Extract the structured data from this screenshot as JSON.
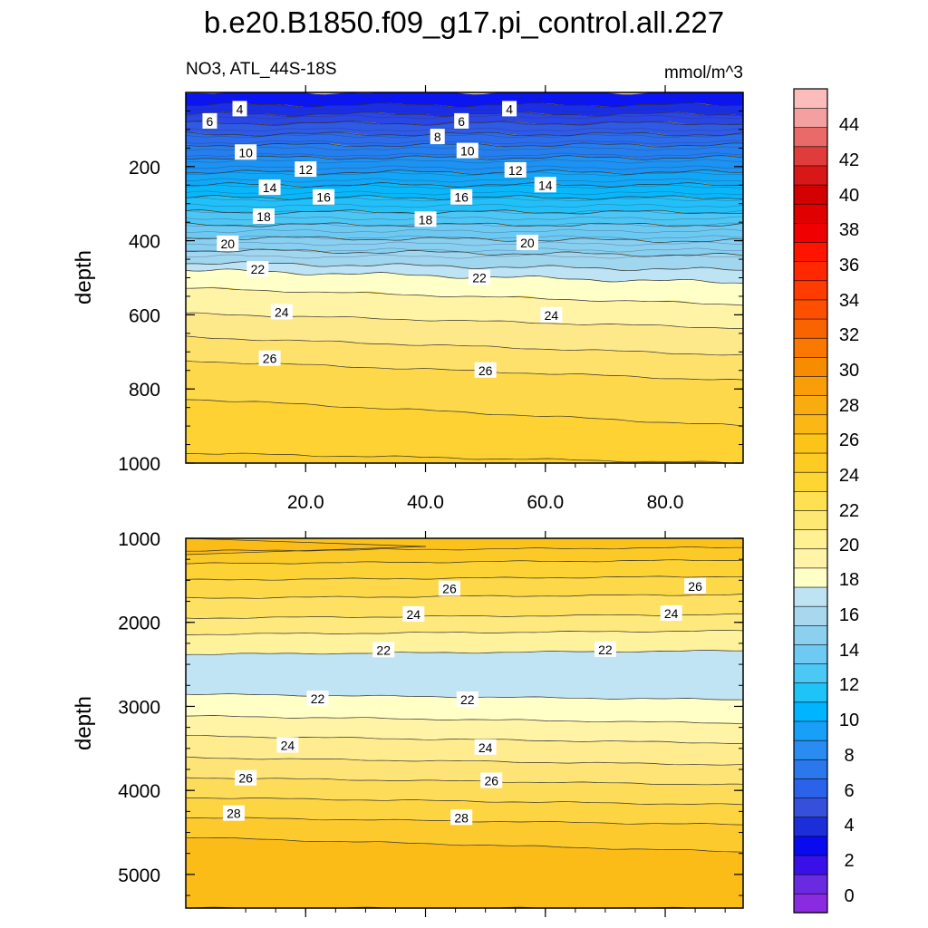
{
  "chart_data": {
    "type": "contour",
    "title": "b.e20.B1850.f09_g17.pi_control.all.227",
    "subtitle_left": "NO3, ATL_44S-18S",
    "units": "mmol/m^3",
    "ylabel": "depth",
    "x_tick_labels": [
      "20.0",
      "40.0",
      "60.0",
      "80.0"
    ],
    "x_ticks": [
      20,
      40,
      60,
      80
    ],
    "xlim": [
      0,
      93
    ],
    "panels": [
      {
        "name": "upper",
        "ylim": [
          0,
          1000
        ],
        "y_ticks": [
          200,
          400,
          600,
          800,
          1000
        ],
        "y_tick_labels": [
          "200",
          "400",
          "600",
          "800",
          "1000"
        ],
        "contour_labels": [
          {
            "text": "4",
            "x": 9,
            "y": 45
          },
          {
            "text": "6",
            "x": 4,
            "y": 78
          },
          {
            "text": "10",
            "x": 10,
            "y": 162
          },
          {
            "text": "12",
            "x": 20,
            "y": 208
          },
          {
            "text": "14",
            "x": 14,
            "y": 257
          },
          {
            "text": "16",
            "x": 23,
            "y": 283
          },
          {
            "text": "18",
            "x": 13,
            "y": 335
          },
          {
            "text": "20",
            "x": 7,
            "y": 408
          },
          {
            "text": "22",
            "x": 12,
            "y": 477
          },
          {
            "text": "24",
            "x": 16,
            "y": 593
          },
          {
            "text": "26",
            "x": 14,
            "y": 718
          },
          {
            "text": "6",
            "x": 46,
            "y": 78
          },
          {
            "text": "4",
            "x": 54,
            "y": 45
          },
          {
            "text": "8",
            "x": 42,
            "y": 120
          },
          {
            "text": "10",
            "x": 47,
            "y": 158
          },
          {
            "text": "12",
            "x": 55,
            "y": 210
          },
          {
            "text": "14",
            "x": 60,
            "y": 250
          },
          {
            "text": "16",
            "x": 46,
            "y": 283
          },
          {
            "text": "18",
            "x": 40,
            "y": 343
          },
          {
            "text": "20",
            "x": 57,
            "y": 406
          },
          {
            "text": "22",
            "x": 49,
            "y": 500
          },
          {
            "text": "24",
            "x": 61,
            "y": 601
          },
          {
            "text": "26",
            "x": 50,
            "y": 750
          }
        ]
      },
      {
        "name": "lower",
        "ylim": [
          1000,
          5400
        ],
        "y_ticks": [
          1000,
          2000,
          3000,
          4000,
          5000
        ],
        "y_tick_labels": [
          "1000",
          "2000",
          "3000",
          "4000",
          "5000"
        ],
        "contour_labels": [
          {
            "text": "26",
            "x": 44,
            "y": 1600
          },
          {
            "text": "24",
            "x": 38,
            "y": 1905
          },
          {
            "text": "22",
            "x": 33,
            "y": 2330
          },
          {
            "text": "22",
            "x": 22,
            "y": 2910
          },
          {
            "text": "24",
            "x": 17,
            "y": 3465
          },
          {
            "text": "26",
            "x": 10,
            "y": 3855
          },
          {
            "text": "28",
            "x": 8,
            "y": 4275
          },
          {
            "text": "22",
            "x": 47,
            "y": 2920
          },
          {
            "text": "24",
            "x": 50,
            "y": 3490
          },
          {
            "text": "26",
            "x": 51,
            "y": 3885
          },
          {
            "text": "28",
            "x": 46,
            "y": 4325
          },
          {
            "text": "22",
            "x": 70,
            "y": 2325
          },
          {
            "text": "26",
            "x": 85,
            "y": 1570
          },
          {
            "text": "24",
            "x": 81,
            "y": 1895
          }
        ]
      }
    ],
    "colorbar": {
      "labels": [
        "0",
        "2",
        "4",
        "6",
        "8",
        "10",
        "12",
        "14",
        "16",
        "18",
        "20",
        "22",
        "24",
        "26",
        "28",
        "30",
        "32",
        "34",
        "36",
        "38",
        "40",
        "42",
        "44"
      ],
      "colors": [
        "#8a2be2",
        "#6a2ae0",
        "#3a10e8",
        "#0a0af0",
        "#1c2ed8",
        "#3650dc",
        "#2a62ea",
        "#2a78ec",
        "#2a8cf0",
        "#18a0f8",
        "#00b4ff",
        "#1ec4f8",
        "#4cc8f4",
        "#6ecaf2",
        "#8cd0f0",
        "#a8d8ee",
        "#bee4f4",
        "#ffffc8",
        "#fff4a8",
        "#fff090",
        "#fee874",
        "#fee050",
        "#fdd634",
        "#fdcc24",
        "#fcc418",
        "#fbb814",
        "#f9ac10",
        "#f99e08",
        "#f88c00",
        "#f87800",
        "#fa6400",
        "#fc5000",
        "#fe3c00",
        "#ff2800",
        "#ff1400",
        "#f00000",
        "#e00000",
        "#d40000",
        "#d81818",
        "#e03c3c",
        "#ea6a6a",
        "#f4a0a0",
        "#fcbcbc"
      ]
    }
  }
}
